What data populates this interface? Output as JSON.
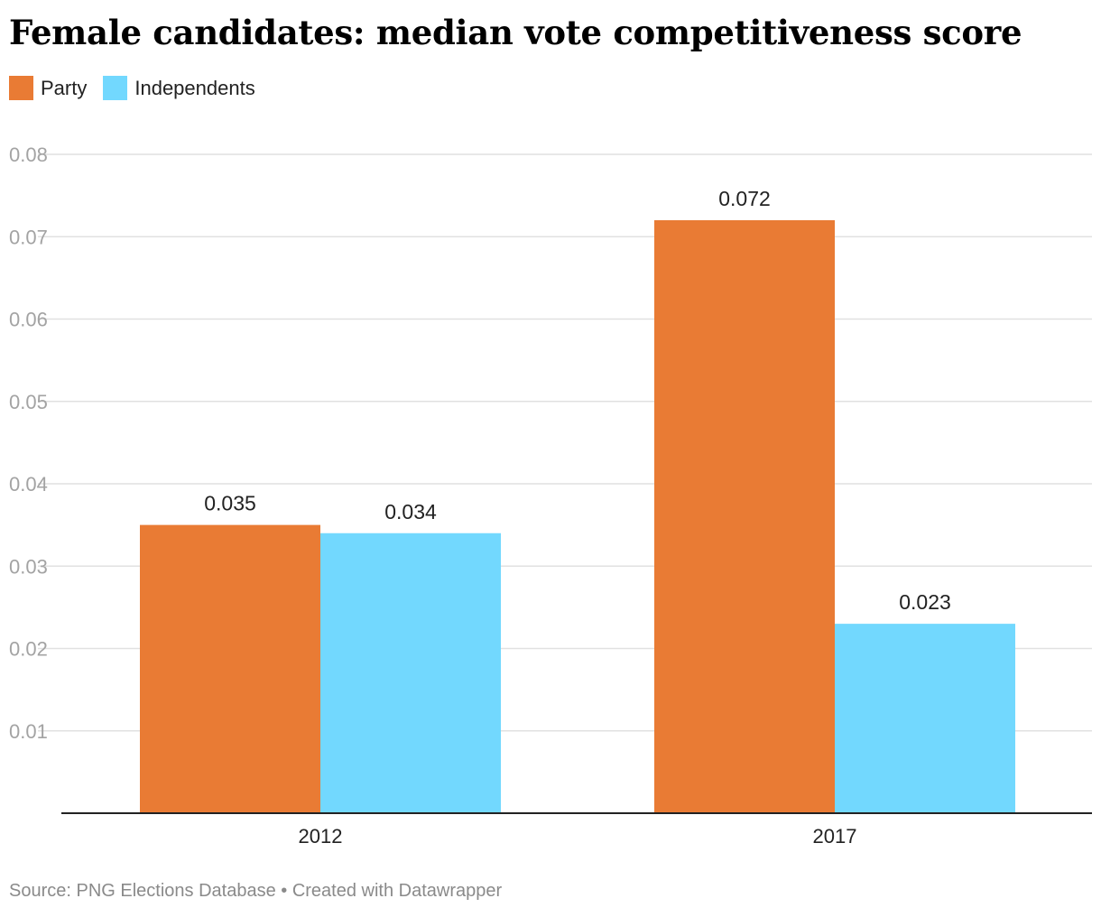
{
  "title": "Female candidates: median vote competitiveness score",
  "footer": {
    "source": "Source: PNG Elections Database",
    "separator": " • ",
    "credit": "Created with Datawrapper"
  },
  "colors": {
    "party": "#e97b34",
    "independents": "#72d8fe",
    "grid": "#e1e1e1",
    "tick_text": "#a3a3a3",
    "axis": "#222222"
  },
  "chart_data": {
    "type": "bar",
    "categories": [
      "2012",
      "2017"
    ],
    "series": [
      {
        "name": "Party",
        "values": [
          0.035,
          0.072
        ]
      },
      {
        "name": "Independents",
        "values": [
          0.034,
          0.023
        ]
      }
    ],
    "value_labels": [
      [
        "0.035",
        "0.072"
      ],
      [
        "0.034",
        "0.023"
      ]
    ],
    "yticks": [
      "0.01",
      "0.02",
      "0.03",
      "0.04",
      "0.05",
      "0.06",
      "0.07",
      "0.08"
    ],
    "ylim": [
      0,
      0.08
    ],
    "legend_position": "top-left",
    "grid": true
  }
}
